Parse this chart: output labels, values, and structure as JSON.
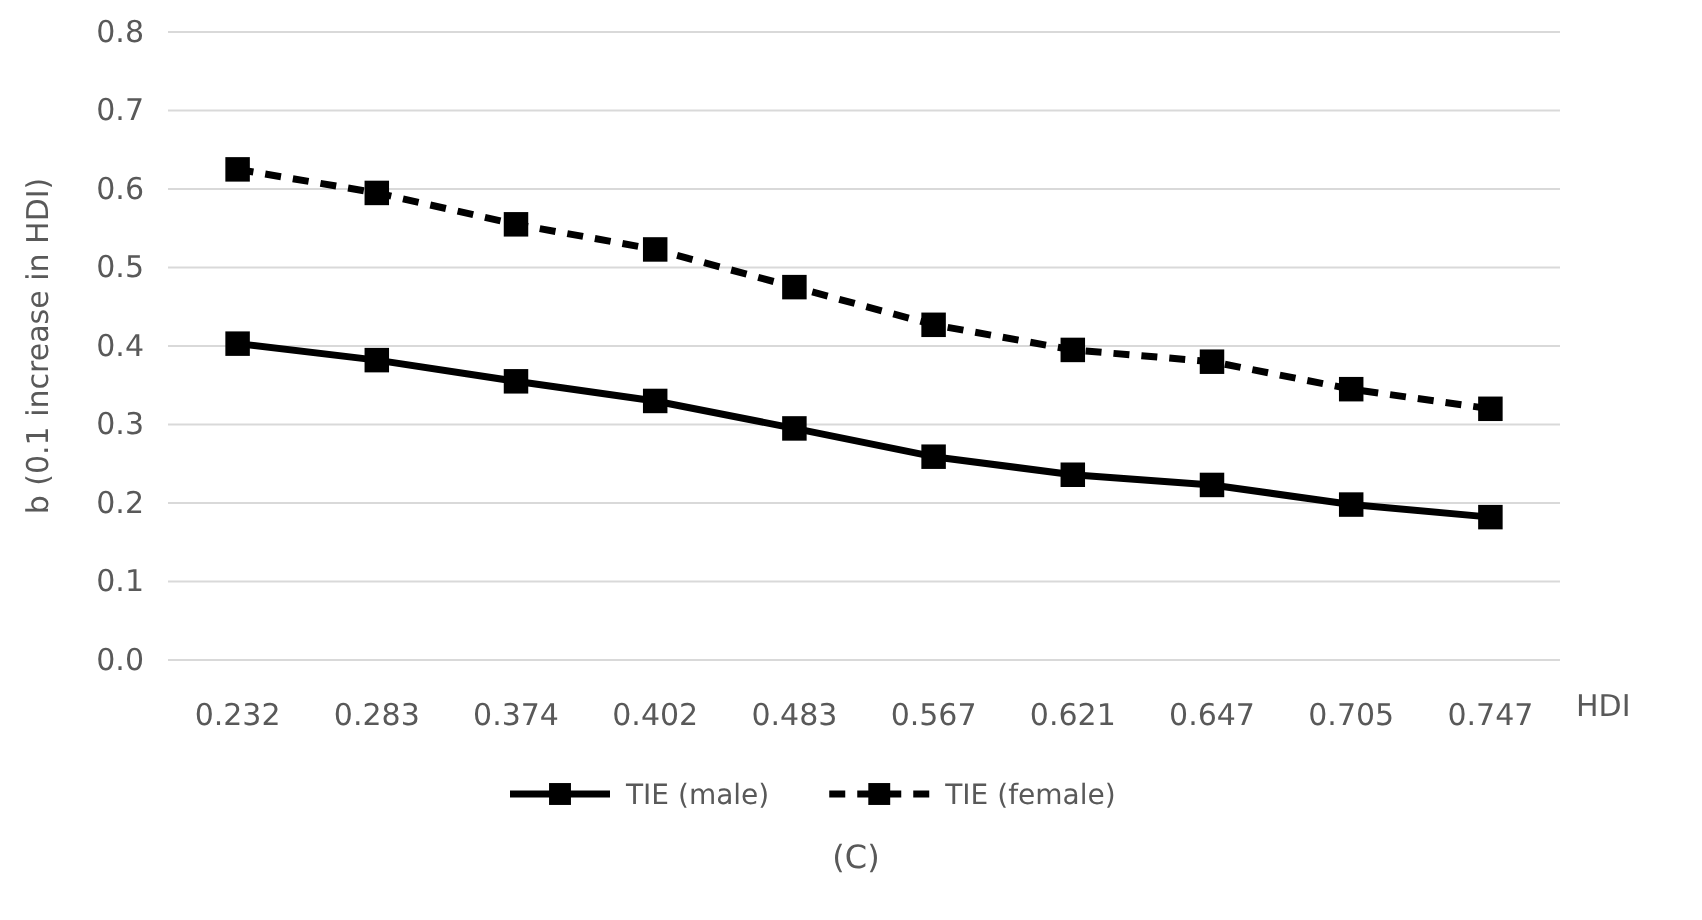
{
  "chart_data": {
    "type": "line",
    "categories": [
      "0.232",
      "0.283",
      "0.374",
      "0.402",
      "0.483",
      "0.567",
      "0.621",
      "0.647",
      "0.705",
      "0.747"
    ],
    "xlabel": "HDI",
    "ylabel": "b (0.1 increase in HDI)",
    "ylim": [
      0,
      0.8
    ],
    "yticks": [
      {
        "value": 0,
        "label": "0.0"
      },
      0.1,
      0.2,
      0.3,
      0.4,
      0.5,
      0.6,
      0.7,
      0.8
    ],
    "grid": "y",
    "legend": "bottom",
    "marker": "square",
    "series": [
      {
        "name": "TIE (male)",
        "color": "#000000",
        "line_style": "solid",
        "values": [
          0.403,
          0.382,
          0.355,
          0.33,
          0.295,
          0.259,
          0.236,
          0.223,
          0.198,
          0.182
        ]
      },
      {
        "name": "TIE (female)",
        "color": "#000000",
        "line_style": "dashed",
        "values": [
          0.625,
          0.595,
          0.555,
          0.523,
          0.475,
          0.427,
          0.395,
          0.38,
          0.345,
          0.32
        ]
      }
    ],
    "annotations": [
      "(C)"
    ]
  }
}
